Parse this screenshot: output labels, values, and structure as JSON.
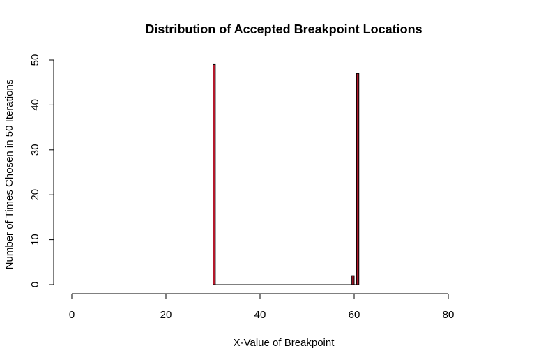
{
  "chart_data": {
    "type": "bar",
    "title": "Distribution of Accepted Breakpoint Locations",
    "xlabel": "X-Value of Breakpoint",
    "ylabel": "Number of Times Chosen in 50 Iterations",
    "xlim": [
      0,
      80
    ],
    "ylim": [
      0,
      50
    ],
    "x_ticks": [
      0,
      20,
      40,
      60,
      80
    ],
    "y_ticks": [
      0,
      10,
      20,
      30,
      40,
      50
    ],
    "bar_color": "#b2182b",
    "bin_width": 0.5,
    "bars": [
      {
        "x": 30,
        "value": 49
      },
      {
        "x": 59.5,
        "value": 2
      },
      {
        "x": 60.5,
        "value": 47
      }
    ],
    "baseline_range": [
      30,
      61
    ],
    "grid": false
  }
}
